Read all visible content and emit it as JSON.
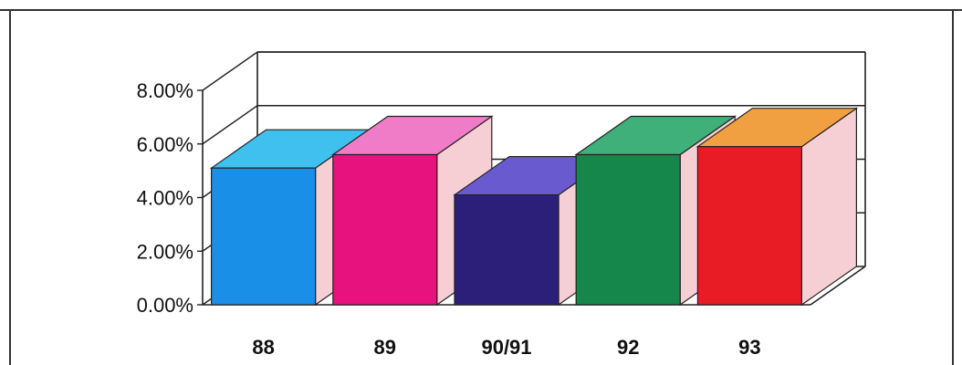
{
  "chart_data": {
    "type": "bar",
    "categories": [
      "88",
      "89",
      "90/91",
      "92",
      "93"
    ],
    "values": [
      5.1,
      5.6,
      4.1,
      5.6,
      5.9
    ],
    "value_unit": "%",
    "ylim": [
      0,
      8
    ],
    "y_ticks": [
      "0.00%",
      "2.00%",
      "4.00%",
      "6.00%",
      "8.00%"
    ],
    "title": "",
    "xlabel": "",
    "ylabel": "",
    "grid": true,
    "three_d": true,
    "colors": [
      "#1a8fe8",
      "#e8127f",
      "#2b1f7a",
      "#16874a",
      "#e81c24"
    ],
    "top_colors": [
      "#3fc0ee",
      "#f07cc8",
      "#6a5ad0",
      "#3fb07a",
      "#f0a040"
    ],
    "side_color": "#f5cfd4"
  }
}
